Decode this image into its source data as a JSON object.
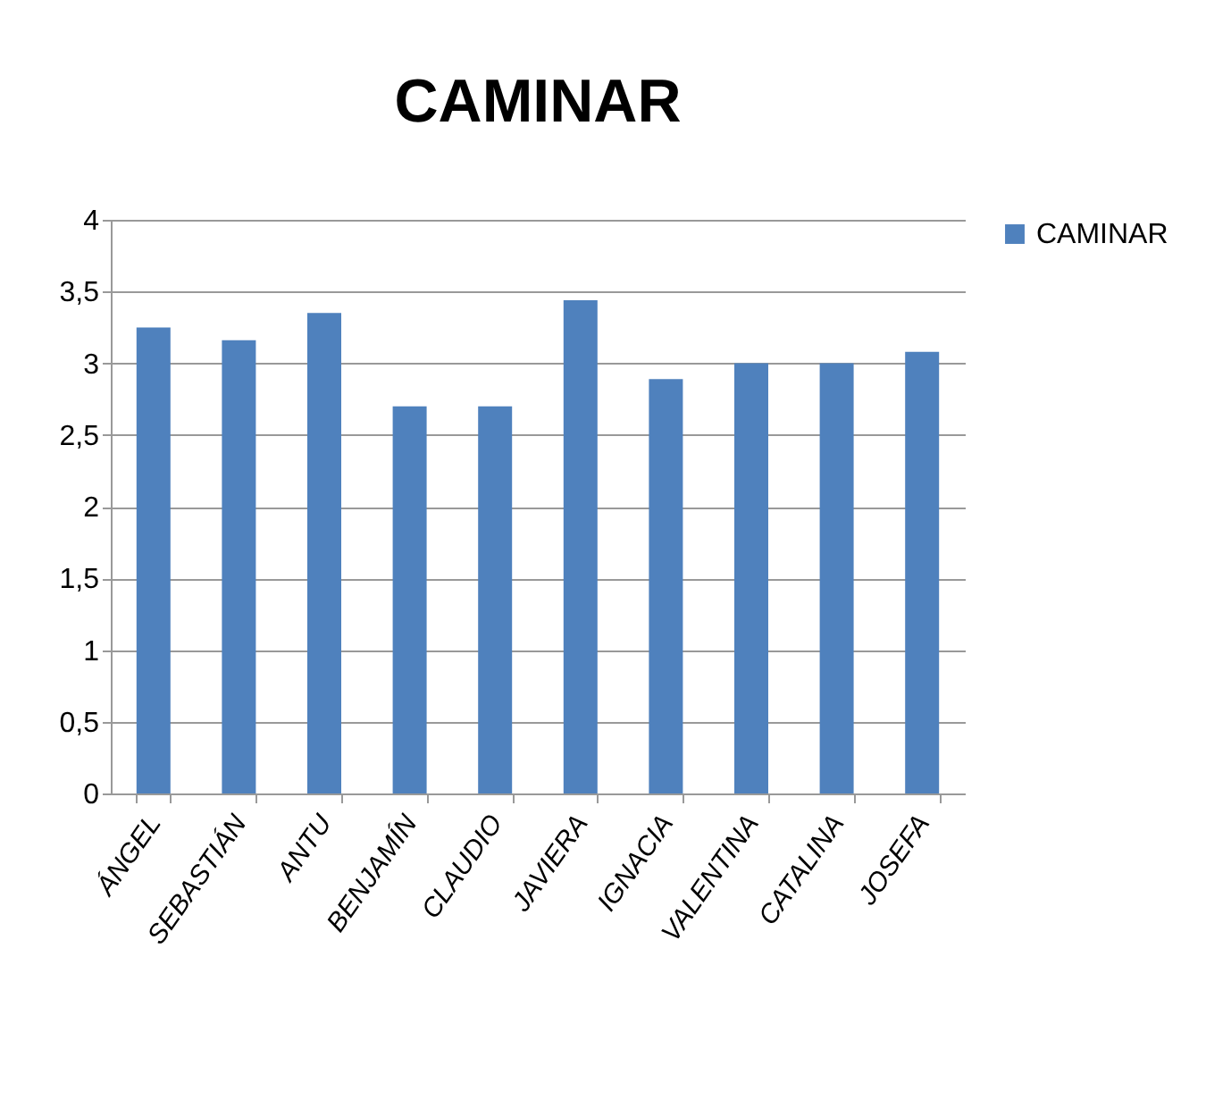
{
  "chart_data": {
    "type": "bar",
    "title": "CAMINAR",
    "categories": [
      "ÁNGEL",
      "SEBASTIÁN",
      "ANTU",
      "BENJAMÍN",
      "CLAUDIO",
      "JAVIERA",
      "IGNACIA",
      "VALENTINA",
      "CATALINA",
      "JOSEFA"
    ],
    "series": [
      {
        "name": "CAMINAR",
        "color": "#4f81bd",
        "values": [
          3.25,
          3.16,
          3.35,
          2.7,
          2.7,
          3.44,
          2.89,
          3,
          3,
          3.08
        ]
      }
    ],
    "ylim": [
      0,
      4
    ],
    "yticks": [
      0,
      {
        "value": 0.5,
        "label": "0,5"
      },
      1,
      {
        "value": 1.5,
        "label": "1,5"
      },
      2,
      {
        "value": 2.5,
        "label": "2,5"
      },
      3,
      {
        "value": 3.5,
        "label": "3,5"
      },
      4
    ],
    "grid": "y",
    "legend": "right"
  }
}
